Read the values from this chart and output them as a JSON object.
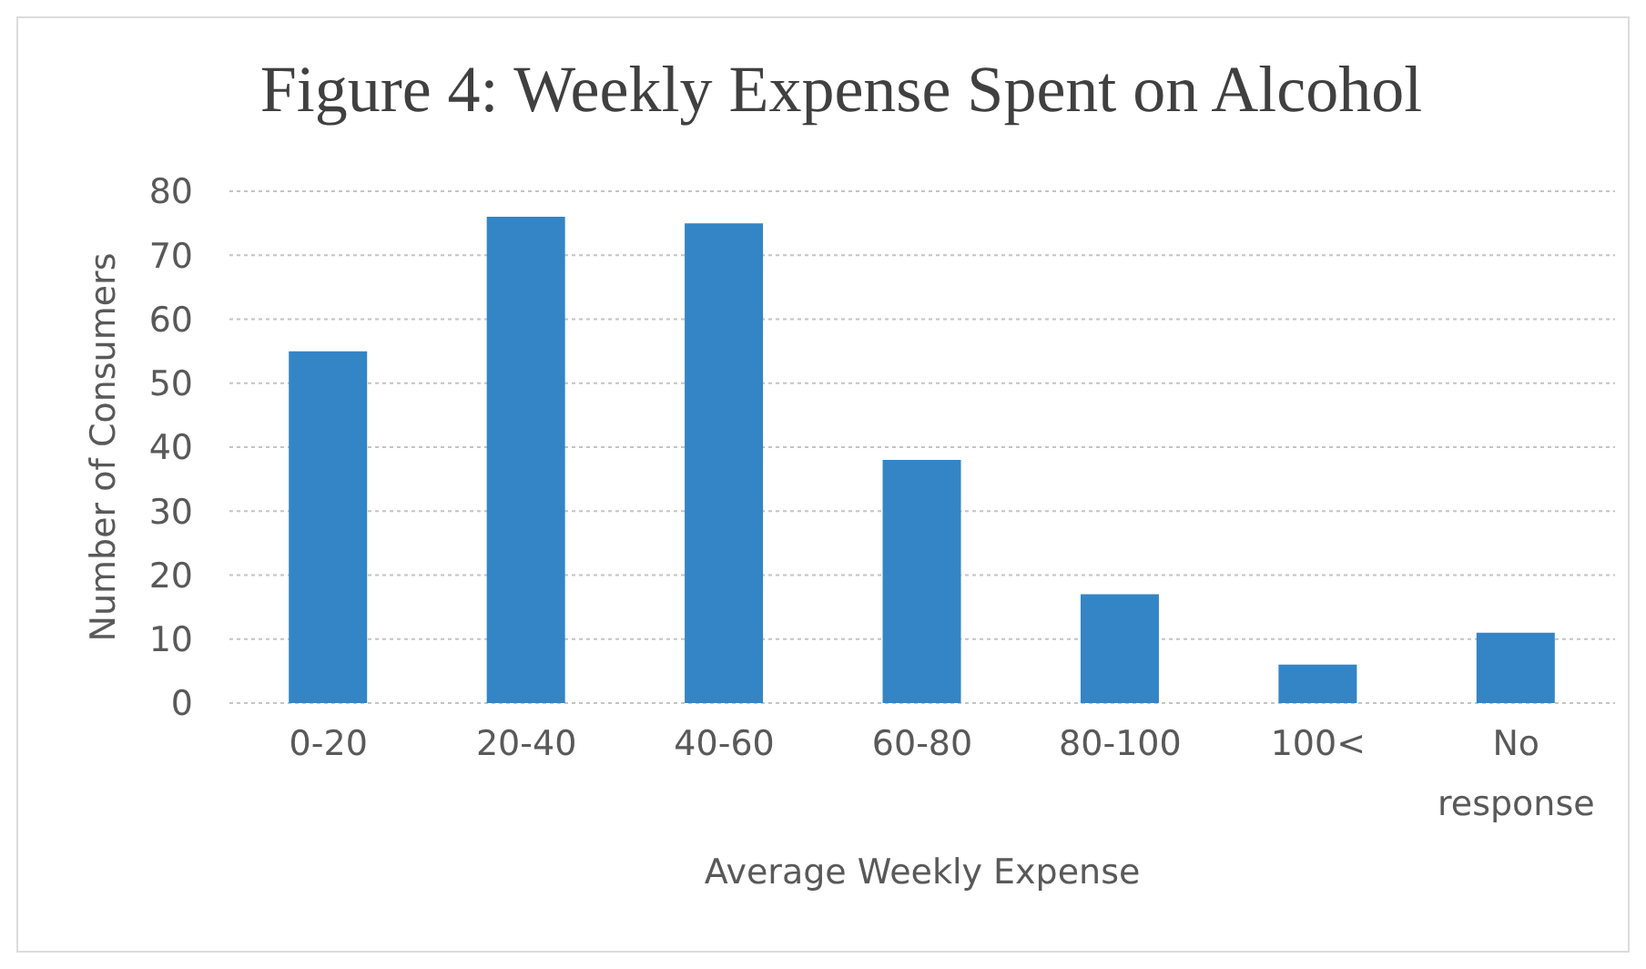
{
  "chart_data": {
    "type": "bar",
    "title": "Figure 4: Weekly Expense Spent on Alcohol",
    "xlabel": "Average Weekly Expense",
    "ylabel": "Number of Consumers",
    "categories": [
      "0-20",
      "20-40",
      "40-60",
      "60-80",
      "80-100",
      "100<",
      "No response"
    ],
    "values": [
      55,
      76,
      75,
      38,
      17,
      6,
      11
    ],
    "color": "#3385c6",
    "ylim": [
      0,
      80
    ],
    "yticks": [
      0,
      10,
      20,
      30,
      40,
      50,
      60,
      70,
      80
    ],
    "grid": "y"
  }
}
